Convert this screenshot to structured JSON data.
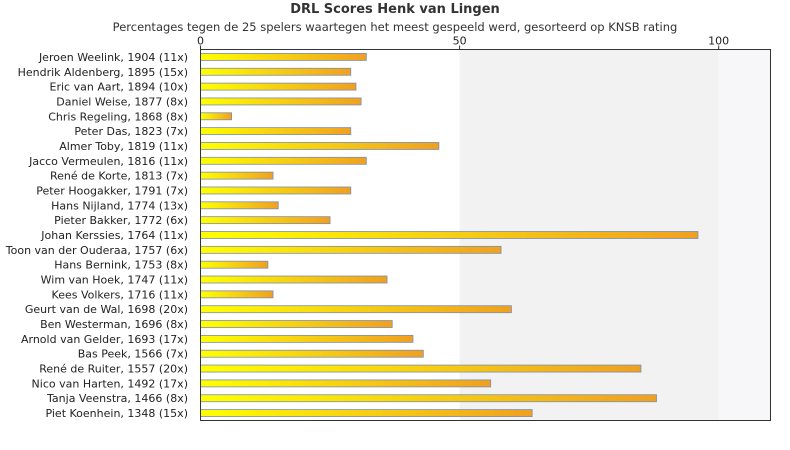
{
  "chart_data": {
    "type": "bar",
    "orientation": "horizontal",
    "title": "DRL Scores Henk van Lingen",
    "subtitle": "Percentages tegen de 25 spelers waartegen het meest gespeeld werd, gesorteerd op KNSB rating",
    "xlim": [
      0,
      110
    ],
    "xticks": [
      0,
      50,
      100
    ],
    "grid": false,
    "colors": {
      "bar_start": "#ffff00",
      "bar_end": "#f0a020",
      "bar_border": "#7a8fb0",
      "band": "#f2f2f2",
      "band_light": "#f7f7f9"
    },
    "categories": [
      "Jeroen Weelink, 1904 (11x)",
      "Hendrik Aldenberg, 1895 (15x)",
      "Eric van Aart, 1894 (10x)",
      "Daniel Weise, 1877 (8x)",
      "Chris Regeling, 1868 (8x)",
      "Peter Das, 1823 (7x)",
      "Almer Toby, 1819 (11x)",
      "Jacco Vermeulen, 1816 (11x)",
      "René de Korte, 1813 (7x)",
      "Peter Hoogakker, 1791 (7x)",
      "Hans Nijland, 1774 (13x)",
      "Pieter Bakker, 1772 (6x)",
      "Johan Kerssies, 1764 (11x)",
      "Toon van der Ouderaa, 1757 (6x)",
      "Hans Bernink, 1753 (8x)",
      "Wim van Hoek, 1747 (11x)",
      "Kees Volkers, 1716 (11x)",
      "Geurt van de Wal, 1698 (20x)",
      "Ben Westerman, 1696 (8x)",
      "Arnold van Gelder, 1693 (17x)",
      "Bas Peek, 1566 (7x)",
      "René de Ruiter, 1557 (20x)",
      "Nico van Harten, 1492 (17x)",
      "Tanja Veenstra, 1466 (8x)",
      "Piet Koenhein, 1348 (15x)"
    ],
    "values": [
      32,
      29,
      30,
      31,
      6,
      29,
      46,
      32,
      14,
      29,
      15,
      25,
      96,
      58,
      13,
      36,
      14,
      60,
      37,
      41,
      43,
      85,
      56,
      88,
      64
    ]
  }
}
